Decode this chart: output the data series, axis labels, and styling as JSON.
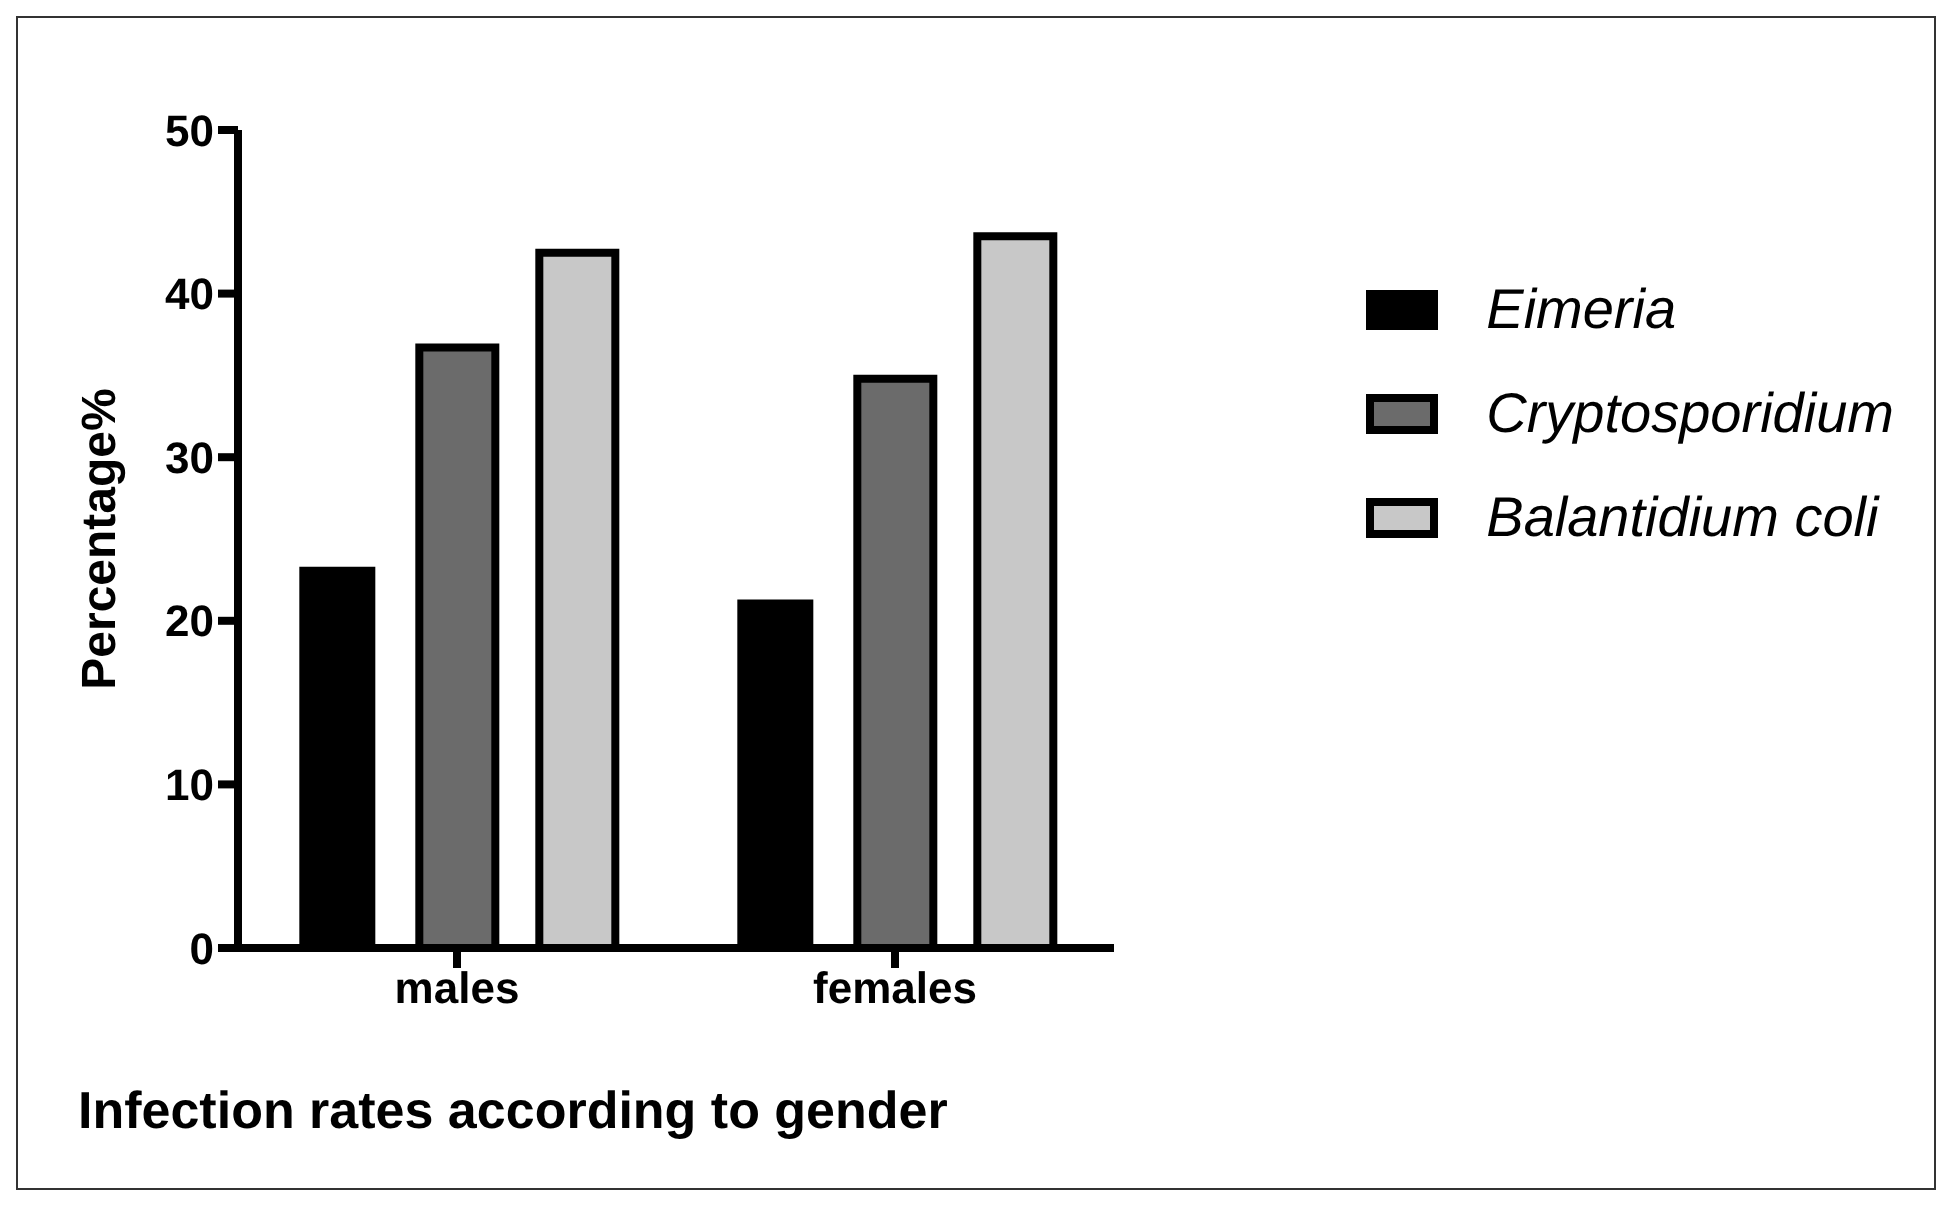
{
  "chart_data": {
    "type": "bar",
    "xlabel": "Infection rates according to gender",
    "ylabel": "Percentage%",
    "categories": [
      "males",
      "females"
    ],
    "series": [
      {
        "name": "Eimeria",
        "color": "#000000",
        "values": [
          23.3,
          21.3
        ]
      },
      {
        "name": "Cryptosporidium",
        "color": "#6b6b6b",
        "values": [
          36.7,
          34.8
        ]
      },
      {
        "name": "Balantidium coli",
        "color": "#c8c8c8",
        "values": [
          42.5,
          43.5
        ]
      }
    ],
    "ylim": [
      0,
      50
    ],
    "yticks": [
      0,
      10,
      20,
      30,
      40,
      50
    ],
    "grid": false,
    "legend": "right"
  }
}
